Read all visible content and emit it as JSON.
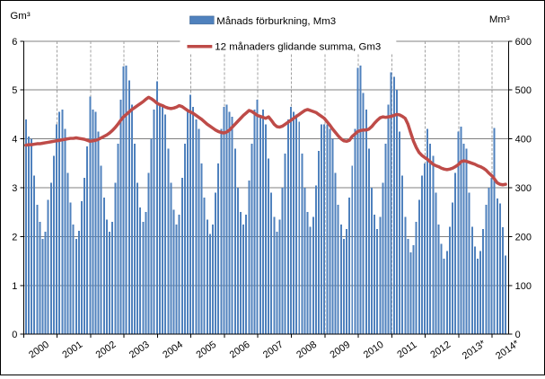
{
  "colors": {
    "bar": "#4F81BD",
    "bar_border": "#385D8A",
    "line": "#BE4B48",
    "grid": "#808080",
    "grid_dashed": "#A0A0A0",
    "axis": "#000000",
    "background": "#FFFFFF"
  },
  "axes": {
    "left_unit": "Gm³",
    "right_unit": "Mm³",
    "left_ticks": [
      "0",
      "1",
      "2",
      "3",
      "4",
      "5",
      "6"
    ],
    "right_ticks": [
      "0",
      "100",
      "200",
      "300",
      "400",
      "500",
      "600"
    ]
  },
  "legend": [
    {
      "label": "Månads förburkning, Mm3",
      "type": "bar",
      "color": "#4F81BD"
    },
    {
      "label": "12 månaders glidande  summa, Gm3",
      "type": "line",
      "color": "#BE4B48"
    }
  ],
  "chart_data": {
    "type": "combo",
    "x_unit": "month",
    "start": "2000-01",
    "x_year_labels": [
      "2000",
      "2001",
      "2002",
      "2003",
      "2004",
      "2005",
      "2006",
      "2007",
      "2008",
      "2009",
      "2010",
      "2011",
      "2012",
      "2013*",
      "2014*"
    ],
    "left_axis": {
      "title": "Gm³",
      "min": 0,
      "max": 6,
      "tick_step": 1,
      "grid": true
    },
    "right_axis": {
      "title": "Mm³",
      "min": 0,
      "max": 600,
      "tick_step": 100
    },
    "legend_position": "top-center",
    "series": [
      {
        "name": "Månads förburkning, Mm3",
        "type": "bar",
        "axis": "right",
        "unit": "Mm3",
        "color": "#4F81BD",
        "values": [
          440,
          405,
          400,
          325,
          265,
          230,
          195,
          210,
          275,
          310,
          365,
          430,
          455,
          460,
          420,
          330,
          270,
          225,
          195,
          212,
          272,
          320,
          385,
          487,
          460,
          455,
          415,
          345,
          280,
          235,
          210,
          230,
          310,
          390,
          480,
          548,
          550,
          520,
          470,
          390,
          310,
          260,
          230,
          250,
          330,
          400,
          460,
          518,
          470,
          465,
          450,
          380,
          310,
          255,
          225,
          245,
          320,
          390,
          460,
          490,
          465,
          440,
          420,
          350,
          280,
          235,
          205,
          225,
          290,
          350,
          420,
          465,
          470,
          455,
          445,
          380,
          300,
          250,
          225,
          245,
          315,
          390,
          460,
          480,
          445,
          460,
          430,
          360,
          290,
          240,
          210,
          235,
          300,
          370,
          440,
          465,
          455,
          450,
          435,
          370,
          300,
          250,
          220,
          240,
          305,
          375,
          430,
          430,
          430,
          420,
          400,
          330,
          265,
          225,
          195,
          215,
          280,
          345,
          420,
          545,
          550,
          494,
          460,
          380,
          300,
          245,
          215,
          240,
          310,
          390,
          470,
          536,
          527,
          500,
          415,
          325,
          240,
          195,
          168,
          182,
          230,
          275,
          325,
          350,
          420,
          390,
          365,
          290,
          225,
          185,
          155,
          170,
          220,
          270,
          330,
          415,
          425,
          390,
          380,
          290,
          220,
          180,
          155,
          170,
          215,
          265,
          300,
          320,
          422,
          278,
          268,
          219,
          161
        ]
      },
      {
        "name": "12 månaders glidande  summa, Gm3",
        "type": "line",
        "axis": "left",
        "unit": "Gm3",
        "color": "#BE4B48",
        "values": [
          3.87,
          3.88,
          3.88,
          3.89,
          3.9,
          3.9,
          3.91,
          3.92,
          3.93,
          3.94,
          3.95,
          3.96,
          3.97,
          3.98,
          3.99,
          4.0,
          4.01,
          4.01,
          4.02,
          4.01,
          4.0,
          3.99,
          3.97,
          3.95,
          3.96,
          3.97,
          3.99,
          4.02,
          4.05,
          4.08,
          4.12,
          4.17,
          4.23,
          4.3,
          4.38,
          4.45,
          4.5,
          4.55,
          4.6,
          4.64,
          4.68,
          4.72,
          4.76,
          4.81,
          4.85,
          4.82,
          4.78,
          4.73,
          4.7,
          4.68,
          4.65,
          4.63,
          4.62,
          4.63,
          4.65,
          4.68,
          4.66,
          4.62,
          4.58,
          4.55,
          4.52,
          4.48,
          4.44,
          4.4,
          4.35,
          4.3,
          4.26,
          4.22,
          4.18,
          4.15,
          4.13,
          4.12,
          4.14,
          4.18,
          4.24,
          4.3,
          4.36,
          4.42,
          4.48,
          4.53,
          4.58,
          4.56,
          4.52,
          4.48,
          4.46,
          4.44,
          4.42,
          4.45,
          4.38,
          4.3,
          4.25,
          4.24,
          4.26,
          4.3,
          4.34,
          4.38,
          4.42,
          4.46,
          4.5,
          4.54,
          4.58,
          4.6,
          4.58,
          4.56,
          4.54,
          4.5,
          4.46,
          4.42,
          4.35,
          4.28,
          4.2,
          4.13,
          4.06,
          4.0,
          3.96,
          3.95,
          3.97,
          4.05,
          4.1,
          4.15,
          4.17,
          4.18,
          4.18,
          4.2,
          4.25,
          4.32,
          4.38,
          4.43,
          4.45,
          4.44,
          4.45,
          4.46,
          4.48,
          4.5,
          4.49,
          4.46,
          4.42,
          4.3,
          4.12,
          3.95,
          3.82,
          3.72,
          3.66,
          3.62,
          3.58,
          3.53,
          3.48,
          3.45,
          3.43,
          3.4,
          3.38,
          3.37,
          3.38,
          3.4,
          3.43,
          3.47,
          3.53,
          3.55,
          3.54,
          3.52,
          3.5,
          3.48,
          3.45,
          3.43,
          3.4,
          3.36,
          3.3,
          3.25,
          3.18,
          3.1,
          3.07,
          3.06,
          3.07
        ]
      }
    ]
  }
}
